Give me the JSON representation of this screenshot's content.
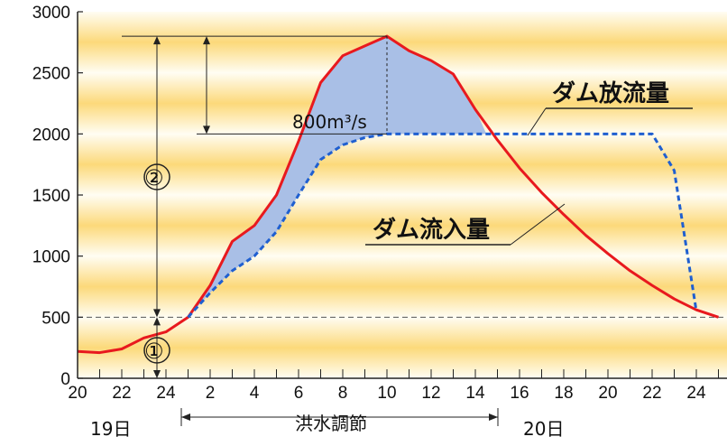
{
  "chart_data": {
    "type": "line",
    "title": "",
    "xlabel": "",
    "ylabel": "",
    "ylim": [
      0,
      3000
    ],
    "x_ticks": [
      "20",
      "22",
      "24",
      "2",
      "4",
      "6",
      "8",
      "10",
      "12",
      "14",
      "16",
      "18",
      "20",
      "22",
      "24"
    ],
    "y_ticks": [
      "0",
      "500",
      "1000",
      "1500",
      "2000",
      "2500",
      "3000"
    ],
    "grid": false,
    "series": [
      {
        "name": "ダム流入量",
        "color": "#e8191e",
        "style": "solid",
        "points": [
          [
            20,
            220
          ],
          [
            21,
            210
          ],
          [
            22,
            240
          ],
          [
            23,
            330
          ],
          [
            24,
            380
          ],
          [
            25,
            500
          ],
          [
            26,
            760
          ],
          [
            27,
            1120
          ],
          [
            28,
            1250
          ],
          [
            29,
            1500
          ],
          [
            30,
            1940
          ],
          [
            31,
            2420
          ],
          [
            32,
            2640
          ],
          [
            33,
            2720
          ],
          [
            34,
            2800
          ],
          [
            35,
            2680
          ],
          [
            36,
            2600
          ],
          [
            37,
            2490
          ],
          [
            38,
            2200
          ],
          [
            39,
            1950
          ],
          [
            40,
            1720
          ],
          [
            41,
            1520
          ],
          [
            42,
            1340
          ],
          [
            43,
            1170
          ],
          [
            44,
            1020
          ],
          [
            45,
            880
          ],
          [
            46,
            760
          ],
          [
            47,
            650
          ],
          [
            48,
            560
          ],
          [
            49,
            500
          ]
        ]
      },
      {
        "name": "ダム放流量",
        "color": "#1f5fd0",
        "style": "dashed",
        "points": [
          [
            25,
            500
          ],
          [
            26,
            700
          ],
          [
            27,
            880
          ],
          [
            28,
            1000
          ],
          [
            29,
            1200
          ],
          [
            30,
            1500
          ],
          [
            31,
            1790
          ],
          [
            32,
            1910
          ],
          [
            33,
            1970
          ],
          [
            34,
            2000
          ],
          [
            35,
            2000
          ],
          [
            36,
            2000
          ],
          [
            37,
            2000
          ],
          [
            38,
            2000
          ],
          [
            39,
            2000
          ],
          [
            40,
            2000
          ],
          [
            41,
            2000
          ],
          [
            42,
            2000
          ],
          [
            43,
            2000
          ],
          [
            44,
            2000
          ],
          [
            45,
            2000
          ],
          [
            46,
            2000
          ],
          [
            47,
            1700
          ],
          [
            48,
            550
          ]
        ]
      }
    ],
    "threshold": 500,
    "annotations": {
      "peak_cut": "800m³/s",
      "zone_1": "①",
      "zone_2": "②",
      "outflow_label": "ダム放流量",
      "inflow_label": "ダム流入量",
      "day_19": "19日",
      "day_20": "20日",
      "control_period": "洪水調節"
    },
    "colors": {
      "inflow": "#e8191e",
      "outflow": "#1f5fd0",
      "reduction_fill": "#a9bfe6",
      "band": "#fcd97a",
      "band_light": "#fffdf3"
    }
  }
}
